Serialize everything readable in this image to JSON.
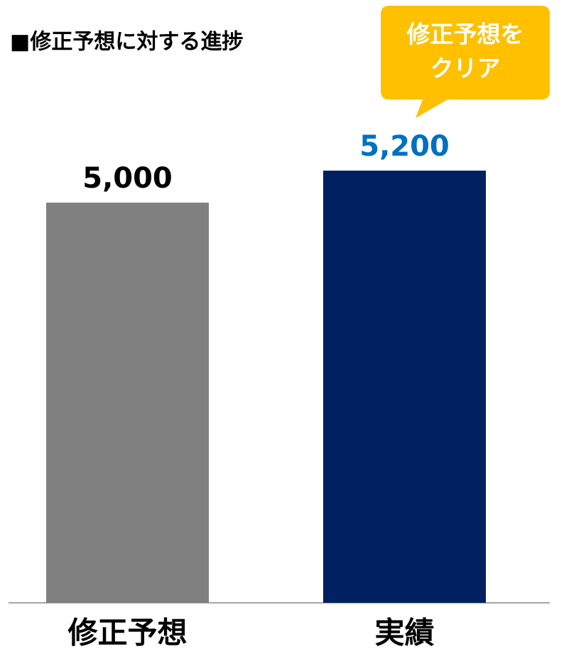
{
  "chart_data": {
    "type": "bar",
    "title": "■修正予想に対する進捗",
    "categories": [
      "修正予想",
      "実績"
    ],
    "values": [
      5000,
      5200
    ],
    "value_labels": [
      "5,000",
      "5,200"
    ],
    "colors": [
      "#808080",
      "#002060"
    ],
    "value_label_colors": [
      "#000000",
      "#0070c0"
    ],
    "ylim": [
      2500,
      5400
    ],
    "annotation": {
      "lines": [
        "修正予想を",
        "クリア"
      ],
      "color": "#ffc000",
      "text_color": "#ffffff"
    }
  }
}
